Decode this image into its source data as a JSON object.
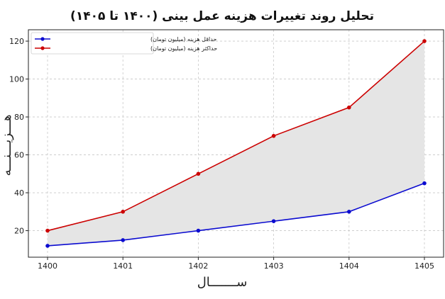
{
  "chart_data": {
    "type": "line",
    "title": "تحلیل روند تغییرات هزینه عمل بینی (۱۴۰۰ تا ۱۴۰۵)",
    "xlabel": "ســـــــال",
    "ylabel": "هـــزیـــنـــه",
    "x": [
      1400,
      1401,
      1402,
      1403,
      1404,
      1405
    ],
    "xticks": [
      "1400",
      "1401",
      "1402",
      "1403",
      "1404",
      "1405"
    ],
    "yticks": [
      20,
      40,
      60,
      80,
      100,
      120
    ],
    "ylim": [
      6,
      126
    ],
    "grid": true,
    "legend_position": "top-left",
    "fill_between": {
      "color": "#e5e5e5"
    },
    "series": [
      {
        "name": "حداقل هزینه (میلیون تومان)",
        "values": [
          12,
          15,
          20,
          25,
          30,
          45
        ],
        "color": "#0b0bd0"
      },
      {
        "name": "حداکثر هزینه (میلیون تومان)",
        "values": [
          20,
          30,
          50,
          70,
          85,
          120
        ],
        "color": "#cc0000"
      }
    ]
  }
}
